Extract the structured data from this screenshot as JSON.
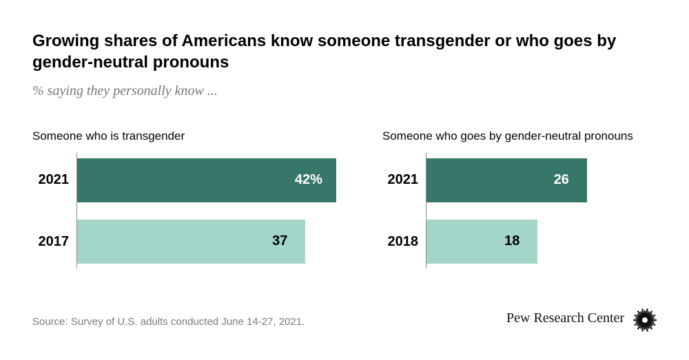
{
  "title": "Growing shares of Americans know someone transgender or who goes by gender-neutral pronouns",
  "subtitle": "% saying they personally know ...",
  "source": "Source: Survey of U.S. adults conducted June 14-27, 2021.",
  "brand": "Pew Research Center",
  "colors": {
    "dark": "#36776A",
    "light": "#A3D5C8"
  },
  "chart_data": [
    {
      "type": "bar",
      "orientation": "horizontal",
      "title": "Someone who is transgender",
      "categories": [
        "2021",
        "2017"
      ],
      "values": [
        42,
        37
      ],
      "labels": [
        "42%",
        "37"
      ]
    },
    {
      "type": "bar",
      "orientation": "horizontal",
      "title": "Someone who goes by gender-neutral pronouns",
      "categories": [
        "2021",
        "2018"
      ],
      "values": [
        26,
        18
      ],
      "labels": [
        "26",
        "18"
      ]
    }
  ]
}
